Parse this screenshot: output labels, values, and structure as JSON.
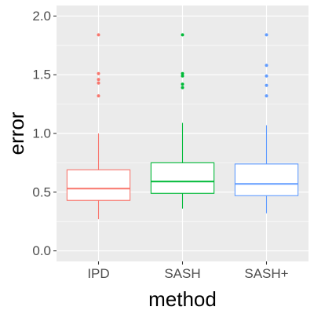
{
  "chart_data": {
    "type": "box",
    "xlabel": "method",
    "ylabel": "error",
    "ylim": [
      -0.09,
      2.09
    ],
    "y_ticks": [
      0.0,
      0.5,
      1.0,
      1.5,
      2.0
    ],
    "y_tick_labels": [
      "0.0",
      "0.5",
      "1.0",
      "1.5",
      "2.0"
    ],
    "grid": true,
    "legend": "none",
    "background_color": "#ebebeb",
    "grid_color": "#ffffff",
    "categories": [
      "IPD",
      "SASH",
      "SASH+"
    ],
    "series": [
      {
        "category": "IPD",
        "color": "#f8766d",
        "whisker_low": 0.27,
        "q1": 0.43,
        "median": 0.53,
        "q3": 0.69,
        "whisker_high": 1.0,
        "outliers": [
          1.32,
          1.43,
          1.46,
          1.51,
          1.84
        ]
      },
      {
        "category": "SASH",
        "color": "#00ba38",
        "whisker_low": 0.36,
        "q1": 0.49,
        "median": 0.59,
        "q3": 0.75,
        "whisker_high": 1.09,
        "outliers": [
          1.39,
          1.42,
          1.49,
          1.51,
          1.84
        ]
      },
      {
        "category": "SASH+",
        "color": "#619cff",
        "whisker_low": 0.32,
        "q1": 0.47,
        "median": 0.57,
        "q3": 0.74,
        "whisker_high": 1.07,
        "outliers": [
          1.32,
          1.41,
          1.49,
          1.58,
          1.84
        ]
      }
    ]
  }
}
